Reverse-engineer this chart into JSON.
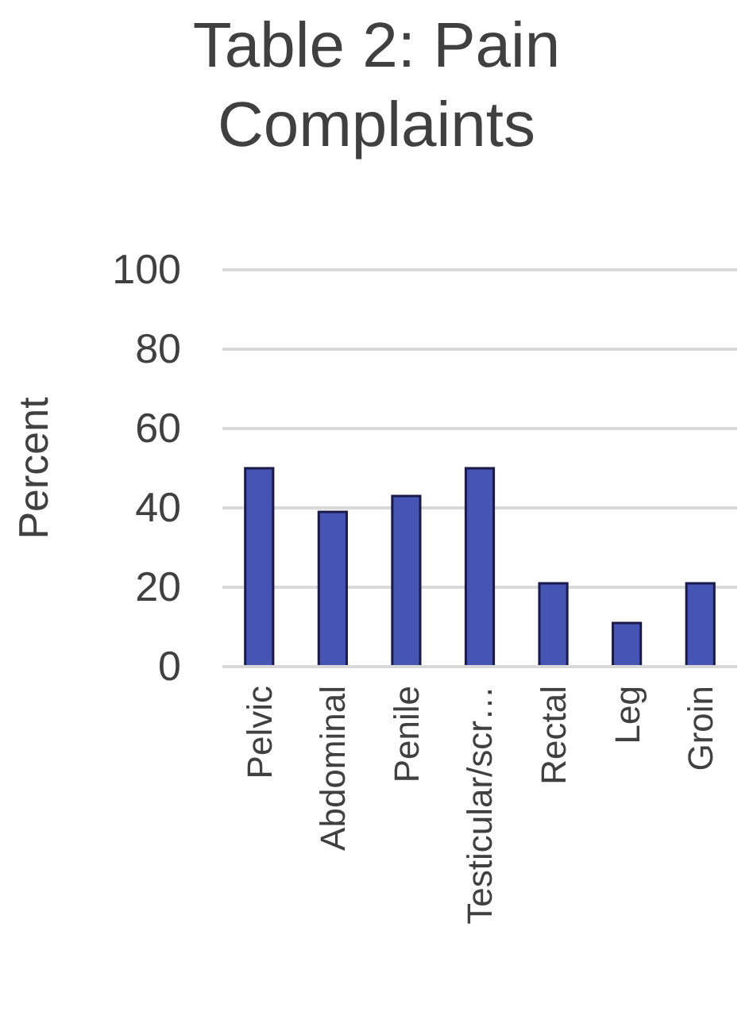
{
  "chart_data": {
    "type": "bar",
    "title": "Table 2: Pain Complaints",
    "ylabel": "Percent",
    "categories": [
      "Pelvic",
      "Abdominal",
      "Penile",
      "Testicular/scr…",
      "Rectal",
      "Leg",
      "Groin"
    ],
    "values": [
      50,
      39,
      43,
      50,
      21,
      11,
      21
    ],
    "color": "#4655b4",
    "ylim": [
      0,
      100
    ],
    "yticks": [
      0,
      20,
      40,
      60,
      80,
      100
    ],
    "grid": "y"
  }
}
